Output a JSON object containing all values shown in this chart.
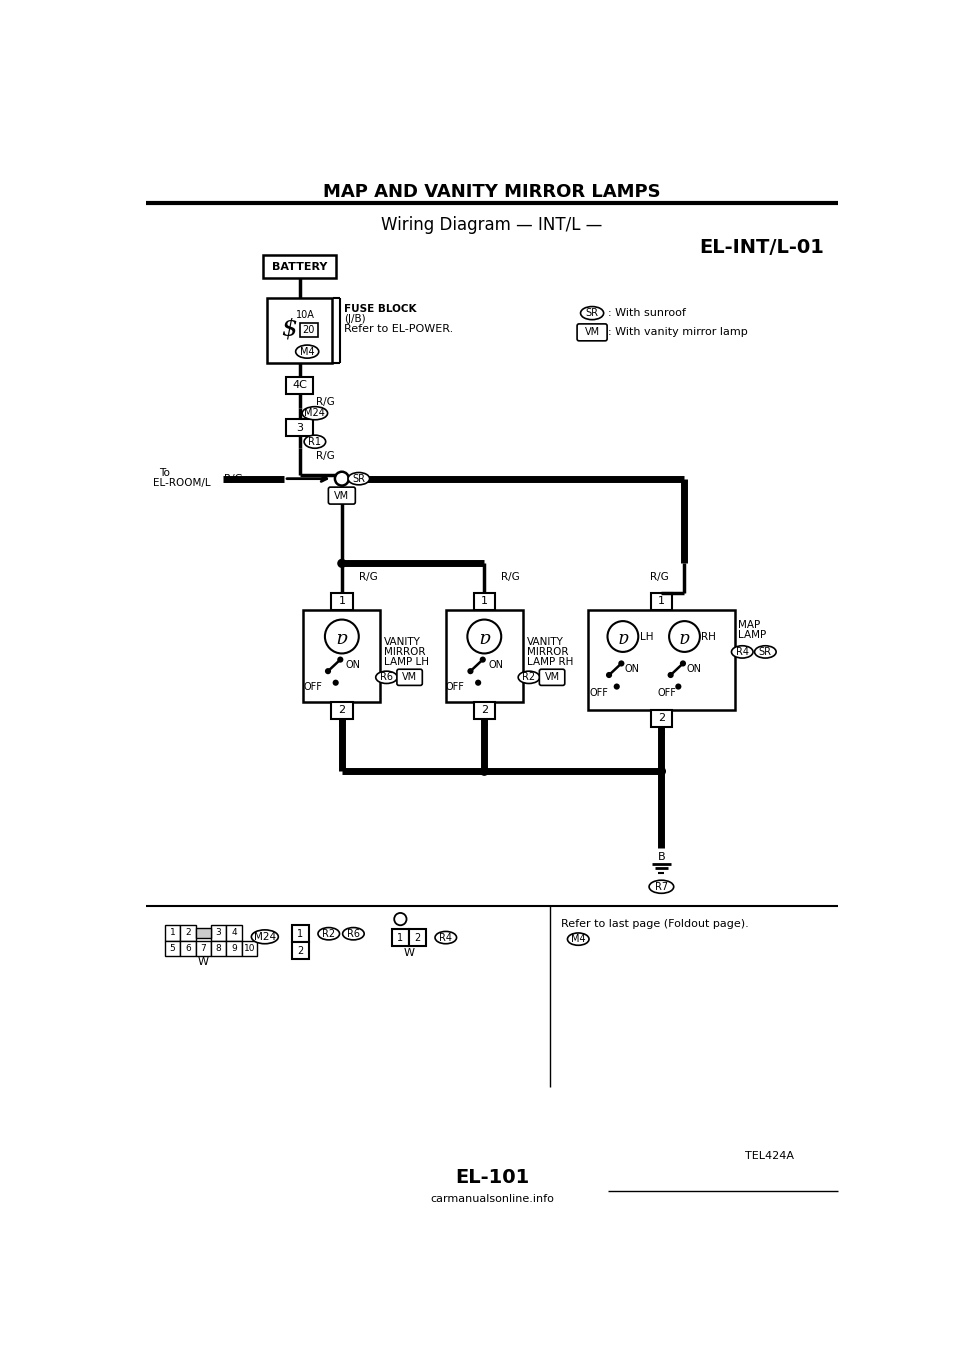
{
  "title": "MAP AND VANITY MIRROR LAMPS",
  "subtitle": "Wiring Diagram — INT/L —",
  "diagram_id": "EL-INT/L-01",
  "page_id": "EL-101",
  "tel_id": "TEL424A",
  "bg_color": "#ffffff",
  "line_color": "#000000"
}
